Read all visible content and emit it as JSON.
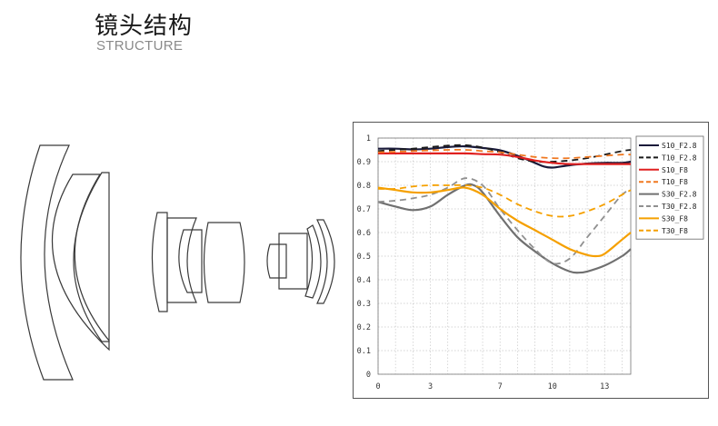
{
  "header": {
    "title": "镜头结构",
    "subtitle": "STRUCTURE"
  },
  "chart_data": {
    "type": "line",
    "title": "",
    "xlabel": "",
    "ylabel": "",
    "xlim": [
      0,
      14.5
    ],
    "ylim": [
      0,
      1
    ],
    "x_ticks": [
      0,
      3,
      7,
      10,
      13
    ],
    "y_ticks": [
      "0",
      "0.1",
      "0.2",
      "0.3",
      "0.4",
      "0.5",
      "0.6",
      "0.7",
      "0.8",
      "0.9",
      "1"
    ],
    "grid": true,
    "legend_position": "top-right",
    "series": [
      {
        "name": "S10_F2.8",
        "color": "#1a1a3a",
        "dash": false,
        "x": [
          0,
          1,
          2,
          3,
          4,
          5,
          6,
          7,
          8,
          9,
          9.5,
          10,
          11,
          12,
          13,
          14,
          14.5
        ],
        "y": [
          0.955,
          0.955,
          0.952,
          0.955,
          0.962,
          0.965,
          0.958,
          0.948,
          0.925,
          0.895,
          0.88,
          0.875,
          0.885,
          0.892,
          0.895,
          0.895,
          0.9
        ]
      },
      {
        "name": "T10_F2.8",
        "color": "#1a1a1a",
        "dash": true,
        "x": [
          0,
          1,
          2,
          3,
          4,
          5,
          6,
          7,
          8,
          9,
          10,
          11,
          12,
          13,
          14,
          14.5
        ],
        "y": [
          0.945,
          0.95,
          0.955,
          0.962,
          0.968,
          0.97,
          0.96,
          0.94,
          0.915,
          0.9,
          0.9,
          0.905,
          0.915,
          0.93,
          0.945,
          0.95
        ]
      },
      {
        "name": "S10_F8",
        "color": "#e02020",
        "dash": false,
        "x": [
          0,
          1,
          2,
          3,
          4,
          5,
          6,
          7,
          8,
          9,
          10,
          11,
          12,
          13,
          14,
          14.5
        ],
        "y": [
          0.935,
          0.935,
          0.935,
          0.935,
          0.935,
          0.935,
          0.932,
          0.93,
          0.92,
          0.905,
          0.895,
          0.89,
          0.89,
          0.89,
          0.89,
          0.89
        ]
      },
      {
        "name": "T10_F8",
        "color": "#f07820",
        "dash": true,
        "x": [
          0,
          1,
          2,
          3,
          4,
          5,
          6,
          7,
          8,
          9,
          10,
          11,
          12,
          13,
          14,
          14.5
        ],
        "y": [
          0.94,
          0.942,
          0.945,
          0.948,
          0.95,
          0.95,
          0.945,
          0.94,
          0.93,
          0.92,
          0.915,
          0.915,
          0.92,
          0.925,
          0.93,
          0.93
        ]
      },
      {
        "name": "S30_F2.8",
        "color": "#707070",
        "dash": false,
        "x": [
          0,
          1,
          2,
          3,
          4,
          5,
          5.5,
          6,
          7,
          8,
          9,
          10,
          11,
          11.5,
          12,
          13,
          14,
          14.5
        ],
        "y": [
          0.73,
          0.71,
          0.695,
          0.71,
          0.76,
          0.8,
          0.8,
          0.77,
          0.67,
          0.58,
          0.52,
          0.47,
          0.435,
          0.43,
          0.435,
          0.46,
          0.5,
          0.53
        ]
      },
      {
        "name": "T30_F2.8",
        "color": "#909090",
        "dash": true,
        "x": [
          0,
          1,
          2,
          3,
          4,
          5,
          6,
          7,
          8,
          9,
          10,
          11,
          12,
          13,
          14,
          14.5
        ],
        "y": [
          0.73,
          0.735,
          0.745,
          0.76,
          0.79,
          0.83,
          0.8,
          0.7,
          0.61,
          0.53,
          0.47,
          0.49,
          0.58,
          0.67,
          0.76,
          0.78
        ]
      },
      {
        "name": "S30_F8",
        "color": "#f5a000",
        "dash": false,
        "x": [
          0,
          1,
          2,
          3,
          4,
          5,
          6,
          7,
          8,
          9,
          10,
          11,
          12,
          12.5,
          13,
          14,
          14.5
        ],
        "y": [
          0.79,
          0.78,
          0.77,
          0.77,
          0.78,
          0.79,
          0.76,
          0.7,
          0.65,
          0.61,
          0.57,
          0.53,
          0.505,
          0.5,
          0.51,
          0.57,
          0.6
        ]
      },
      {
        "name": "T30_F8",
        "color": "#f5a000",
        "dash": true,
        "x": [
          0,
          1,
          2,
          3,
          4,
          5,
          6,
          7,
          8,
          9,
          10,
          11,
          12,
          13,
          14,
          14.5
        ],
        "y": [
          0.785,
          0.785,
          0.795,
          0.8,
          0.8,
          0.8,
          0.79,
          0.76,
          0.72,
          0.69,
          0.67,
          0.67,
          0.69,
          0.72,
          0.76,
          0.78
        ]
      }
    ]
  }
}
